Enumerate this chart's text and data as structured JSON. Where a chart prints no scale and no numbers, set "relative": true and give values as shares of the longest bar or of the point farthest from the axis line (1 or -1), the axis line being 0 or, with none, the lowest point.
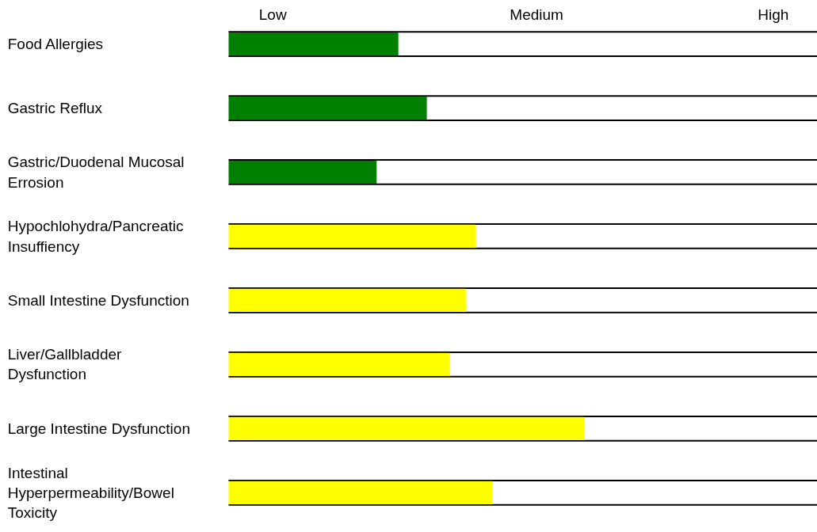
{
  "chart_data": {
    "type": "bar",
    "orientation": "horizontal",
    "relative": true,
    "categories": [
      "Food Allergies",
      "Gastric Reflux",
      "Gastric/Duodenal Mucosal Errosion",
      "Hypochlohydra/Pancreatic Insuffiency",
      "Small Intestine Dysfunction",
      "Liver/Gallbladder Dysfunction",
      "Large Intestine Dysfunction",
      "Intestinal Hyperpermeability/Bowel Toxicity"
    ],
    "values": [
      0.477,
      0.557,
      0.416,
      0.695,
      0.668,
      0.621,
      1.0,
      0.742
    ],
    "colors": [
      "#008000",
      "#008000",
      "#008000",
      "#ffff00",
      "#ffff00",
      "#ffff00",
      "#ffff00",
      "#ffff00"
    ],
    "annotations": [
      "Low",
      "Medium",
      "High"
    ]
  }
}
